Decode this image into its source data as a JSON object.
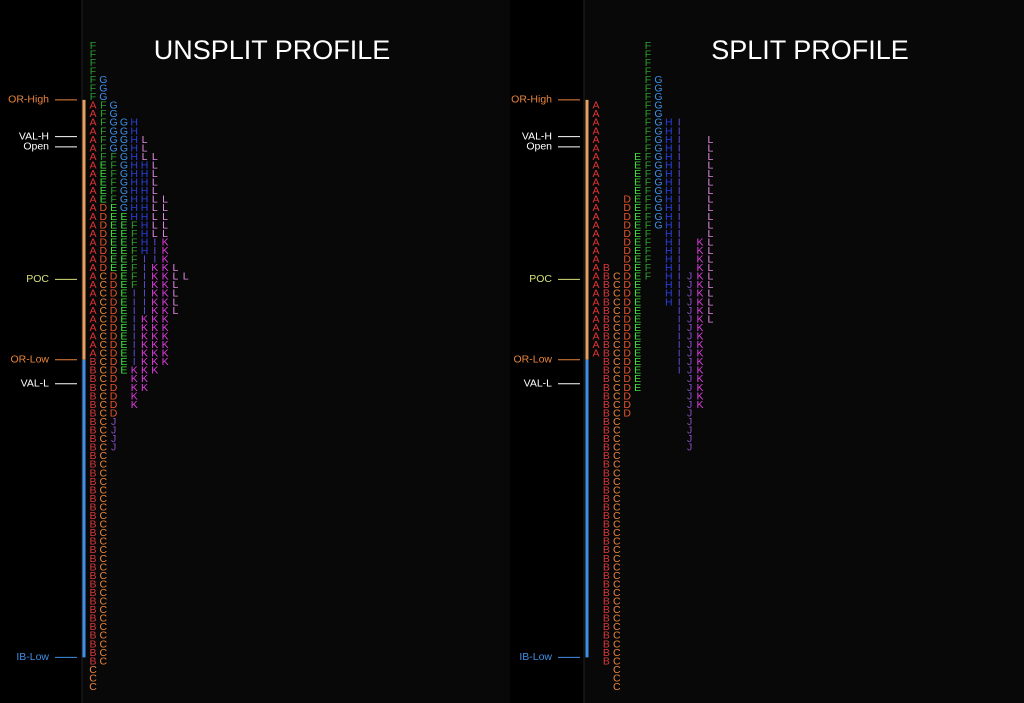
{
  "chart_data": [
    {
      "type": "tpo",
      "title": "UNSPLIT PROFILE",
      "letter_colors": {
        "A": "#e63232",
        "B": "#d83a3a",
        "C": "#e8843c",
        "D": "#e4552e",
        "E": "#3fe03f",
        "F": "#2e9e2e",
        "G": "#3f8fe6",
        "H": "#2a3fe0",
        "I": "#5a4ed6",
        "J": "#8a4fc4",
        "K": "#e03ee0",
        "L": "#e48ae4"
      },
      "levels": [
        {
          "label": "OR-High",
          "row": 6.3,
          "color": "#e8843c"
        },
        {
          "label": "VAL-H",
          "row": 10.6,
          "color": "#ffffff"
        },
        {
          "label": "Open",
          "row": 11.8,
          "color": "#ffffff"
        },
        {
          "label": "POC",
          "row": 27.3,
          "color": "#d6e07a"
        },
        {
          "label": "OR-Low",
          "row": 36.7,
          "color": "#e8843c"
        },
        {
          "label": "VAL-L",
          "row": 39.5,
          "color": "#ffffff"
        },
        {
          "label": "IB-Low",
          "row": 71.5,
          "color": "#3f8fe6"
        }
      ],
      "columns": [
        [
          {
            "letter": "F",
            "from": 0,
            "to": 6
          },
          {
            "letter": "A",
            "from": 7,
            "to": 36
          },
          {
            "letter": "B",
            "from": 37,
            "to": 72
          },
          {
            "letter": "C",
            "from": 73,
            "to": 75
          }
        ],
        [
          {
            "letter": "G",
            "from": 4,
            "to": 6
          },
          {
            "letter": "F",
            "from": 7,
            "to": 13
          },
          {
            "letter": "E",
            "from": 14,
            "to": 18
          },
          {
            "letter": "D",
            "from": 19,
            "to": 26
          },
          {
            "letter": "C",
            "from": 27,
            "to": 72
          }
        ],
        [
          {
            "letter": "G",
            "from": 7,
            "to": 12
          },
          {
            "letter": "F",
            "from": 13,
            "to": 18
          },
          {
            "letter": "E",
            "from": 19,
            "to": 26
          },
          {
            "letter": "D",
            "from": 27,
            "to": 43
          },
          {
            "letter": "J",
            "from": 44,
            "to": 47
          }
        ],
        [
          {
            "letter": "G",
            "from": 9,
            "to": 19
          },
          {
            "letter": "E",
            "from": 20,
            "to": 38
          }
        ],
        [
          {
            "letter": "H",
            "from": 9,
            "to": 20
          },
          {
            "letter": "F",
            "from": 21,
            "to": 28
          },
          {
            "letter": "I",
            "from": 29,
            "to": 37
          },
          {
            "letter": "K",
            "from": 38,
            "to": 42
          }
        ],
        [
          {
            "letter": "L",
            "from": 11,
            "to": 13
          },
          {
            "letter": "H",
            "from": 14,
            "to": 24
          },
          {
            "letter": "I",
            "from": 25,
            "to": 31
          },
          {
            "letter": "K",
            "from": 32,
            "to": 40
          }
        ],
        [
          {
            "letter": "L",
            "from": 13,
            "to": 22
          },
          {
            "letter": "I",
            "from": 23,
            "to": 25
          },
          {
            "letter": "K",
            "from": 26,
            "to": 38
          }
        ],
        [
          {
            "letter": "L",
            "from": 18,
            "to": 22
          },
          {
            "letter": "K",
            "from": 23,
            "to": 37
          }
        ],
        [
          {
            "letter": "L",
            "from": 26,
            "to": 31
          }
        ],
        [
          {
            "letter": "L",
            "from": 27,
            "to": 27
          }
        ]
      ]
    },
    {
      "type": "tpo",
      "title": "SPLIT PROFILE",
      "letter_colors": {
        "A": "#e63232",
        "B": "#d83a3a",
        "C": "#e8843c",
        "D": "#e4552e",
        "E": "#3fe03f",
        "F": "#2e9e2e",
        "G": "#3f8fe6",
        "H": "#2a3fe0",
        "I": "#5a4ed6",
        "J": "#8a4fc4",
        "K": "#e03ee0",
        "L": "#e48ae4"
      },
      "levels": [
        {
          "label": "OR-High",
          "row": 6.3,
          "color": "#e8843c"
        },
        {
          "label": "VAL-H",
          "row": 10.6,
          "color": "#ffffff"
        },
        {
          "label": "Open",
          "row": 11.8,
          "color": "#ffffff"
        },
        {
          "label": "POC",
          "row": 27.3,
          "color": "#d6e07a"
        },
        {
          "label": "OR-Low",
          "row": 36.7,
          "color": "#e8843c"
        },
        {
          "label": "VAL-L",
          "row": 39.5,
          "color": "#ffffff"
        },
        {
          "label": "IB-Low",
          "row": 71.5,
          "color": "#3f8fe6"
        }
      ],
      "columns": [
        [
          {
            "letter": "A",
            "from": 7,
            "to": 36
          }
        ],
        [
          {
            "letter": "B",
            "from": 26,
            "to": 72
          }
        ],
        [
          {
            "letter": "C",
            "from": 27,
            "to": 75
          }
        ],
        [
          {
            "letter": "D",
            "from": 18,
            "to": 43
          }
        ],
        [
          {
            "letter": "E",
            "from": 13,
            "to": 40
          }
        ],
        [
          {
            "letter": "F",
            "from": 0,
            "to": 27
          }
        ],
        [
          {
            "letter": "G",
            "from": 4,
            "to": 21
          }
        ],
        [
          {
            "letter": "H",
            "from": 9,
            "to": 30
          }
        ],
        [
          {
            "letter": "I",
            "from": 9,
            "to": 38
          }
        ],
        [
          {
            "letter": "J",
            "from": 27,
            "to": 47
          }
        ],
        [
          {
            "letter": "K",
            "from": 23,
            "to": 42
          }
        ],
        [
          {
            "letter": "L",
            "from": 11,
            "to": 32
          }
        ]
      ]
    }
  ]
}
